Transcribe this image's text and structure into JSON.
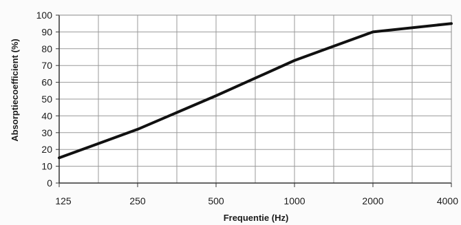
{
  "chart_data": {
    "type": "line",
    "title": "",
    "xlabel": "Frequentie (Hz)",
    "ylabel": "Absorptiecoefficient (%)",
    "x_scale": "log2",
    "x": [
      125,
      250,
      500,
      1000,
      2000,
      4000
    ],
    "xtick_labels": [
      "125",
      "250",
      "500",
      "1000",
      "2000",
      "4000"
    ],
    "ytick_labels": [
      "0",
      "10",
      "20",
      "30",
      "40",
      "50",
      "60",
      "70",
      "80",
      "90",
      "100"
    ],
    "ylim": [
      0,
      100
    ],
    "grid": true,
    "series": [
      {
        "values": [
          15,
          32,
          52,
          73,
          90,
          95
        ],
        "color": "#111111"
      }
    ]
  }
}
